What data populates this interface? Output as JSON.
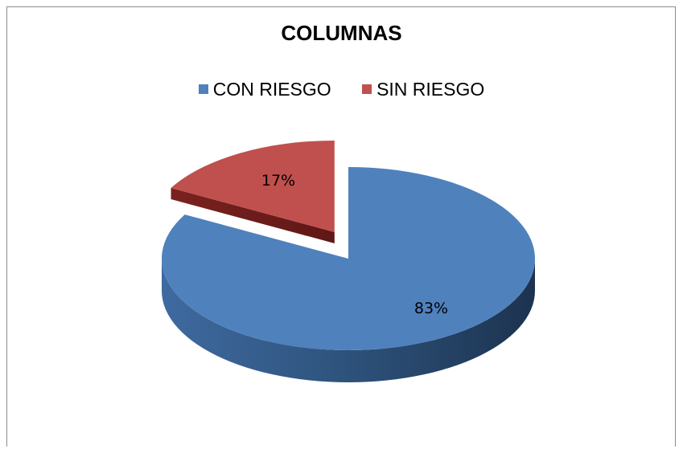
{
  "colors": {
    "con_riesgo": "#4f81bd",
    "con_riesgo_side": "#3a6294",
    "sin_riesgo": "#c0504d",
    "sin_riesgo_side": "#8e3330"
  },
  "chart_data": {
    "type": "pie",
    "title": "COLUMNAS",
    "legend_position": "top",
    "three_d": true,
    "exploded": [
      "SIN RIESGO"
    ],
    "slices": [
      {
        "label": "CON RIESGO",
        "value": 83,
        "data_label": "83%"
      },
      {
        "label": "SIN RIESGO",
        "value": 17,
        "data_label": "17%"
      }
    ]
  }
}
